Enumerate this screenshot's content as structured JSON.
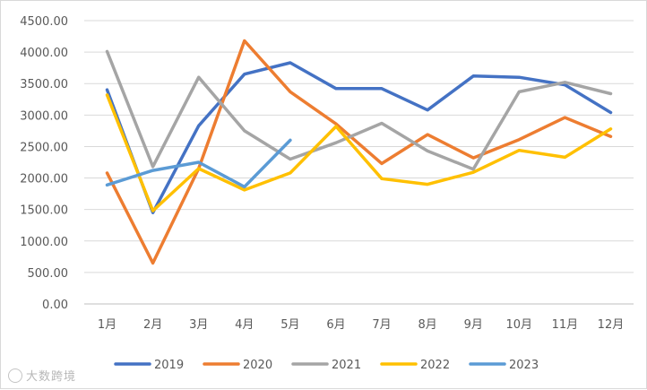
{
  "chart_data": {
    "type": "line",
    "categories": [
      "1月",
      "2月",
      "3月",
      "4月",
      "5月",
      "6月",
      "7月",
      "8月",
      "9月",
      "10月",
      "11月",
      "12月"
    ],
    "ylim": [
      0,
      4500
    ],
    "yticks": [
      0,
      500,
      1000,
      1500,
      2000,
      2500,
      3000,
      3500,
      4000,
      4500
    ],
    "ytick_labels": [
      "0.00",
      "500.00",
      "1000.00",
      "1500.00",
      "2000.00",
      "2500.00",
      "3000.00",
      "3500.00",
      "4000.00",
      "4500.00"
    ],
    "grid": true,
    "legend_position": "bottom",
    "series": [
      {
        "name": "2019",
        "color": "#4472C4",
        "values": [
          3400,
          1450,
          2830,
          3650,
          3830,
          3420,
          3420,
          3080,
          3620,
          3600,
          3480,
          3040
        ]
      },
      {
        "name": "2020",
        "color": "#ED7D31",
        "values": [
          2080,
          650,
          2150,
          4180,
          3370,
          2860,
          2230,
          2690,
          2320,
          2610,
          2960,
          2660
        ]
      },
      {
        "name": "2021",
        "color": "#A5A5A5",
        "values": [
          4010,
          2180,
          3600,
          2750,
          2300,
          2560,
          2870,
          2430,
          2140,
          3370,
          3520,
          3340
        ]
      },
      {
        "name": "2022",
        "color": "#FFC000",
        "values": [
          3320,
          1480,
          2150,
          1810,
          2080,
          2820,
          1990,
          1900,
          2090,
          2440,
          2330,
          2780
        ]
      },
      {
        "name": "2023",
        "color": "#5B9BD5",
        "values": [
          1890,
          2120,
          2250,
          1860,
          2600,
          null,
          null,
          null,
          null,
          null,
          null,
          null
        ]
      }
    ]
  },
  "watermark": {
    "text": "大数跨境"
  }
}
